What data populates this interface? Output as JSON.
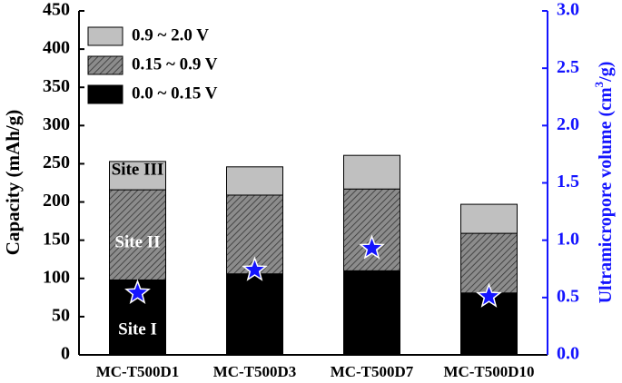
{
  "chart_data": {
    "type": "bar",
    "stacked": true,
    "categories": [
      "MC-T500D1",
      "MC-T500D3",
      "MC-T500D7",
      "MC-T500D10"
    ],
    "series": [
      {
        "name": "0.0 ~ 0.15 V",
        "color": "#000000",
        "values": [
          98,
          106,
          110,
          81
        ]
      },
      {
        "name": "0.15 ~ 0.9 V",
        "color": "#8c8c8c",
        "hatch": true,
        "values": [
          118,
          103,
          107,
          78
        ]
      },
      {
        "name": "0.9 ~ 2.0 V",
        "color": "#c0c0c0",
        "values": [
          37,
          37,
          44,
          38
        ]
      },
      {
        "axis": "y2",
        "marker": "star",
        "color": "#1414ff",
        "values": [
          0.54,
          0.74,
          0.93,
          0.51
        ]
      }
    ],
    "ylabel": "Capacity (mAh/g)",
    "y2label": [
      "Ultramicropore volume (cm",
      "3",
      "/g)"
    ],
    "y2color": "#1414ff",
    "ylim": [
      0,
      450
    ],
    "yticks": [
      0,
      50,
      100,
      150,
      200,
      250,
      300,
      350,
      400,
      450
    ],
    "y2lim": [
      0,
      3
    ],
    "y2ticks": [
      {
        "value": 0,
        "label": "0.0"
      },
      0.5,
      {
        "value": 1,
        "label": "1.0"
      },
      1.5,
      {
        "value": 2,
        "label": "2.0"
      },
      2.5,
      {
        "value": 3,
        "label": "3.0"
      }
    ],
    "annotations": [
      "Site III",
      "Site II",
      "Site I"
    ],
    "legend": "upper left"
  }
}
